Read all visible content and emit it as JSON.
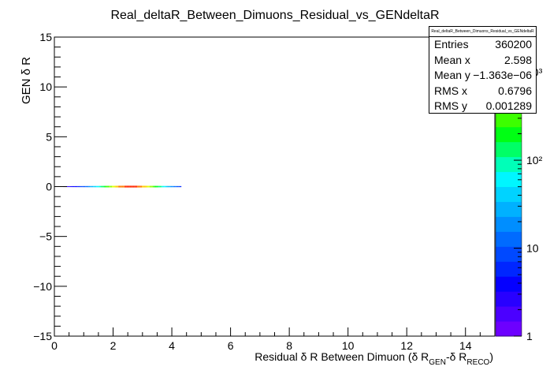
{
  "chart_data": {
    "type": "heatmap",
    "title": "Real_deltaR_Between_Dimuons_Residual_vs_GENdeltaR",
    "xlabel": "Residual δ R Between Dimuon (δ R_GEN-δ R_RECO)",
    "xlabel_parts": {
      "main": "Residual δ R Between Dimuon (δ R",
      "sub1": "GEN",
      "mid": "-δ R",
      "sub2": "RECO",
      "end": ")"
    },
    "ylabel": "GEN δ R",
    "xlim": [
      0,
      15
    ],
    "ylim": [
      -15,
      15
    ],
    "x_ticks": [
      "0",
      "2",
      "4",
      "6",
      "8",
      "10",
      "12",
      "14"
    ],
    "y_ticks": [
      "−15",
      "−10",
      "−5",
      "0",
      "5",
      "10",
      "15"
    ],
    "z_scale": "log",
    "z_ticks": [
      "1",
      "10",
      "10²",
      "10³"
    ],
    "palette": [
      "#6d00ff",
      "#4b00ff",
      "#2800ff",
      "#0500ff",
      "#0026ff",
      "#0049ff",
      "#006bff",
      "#008eff",
      "#00b1ff",
      "#00d3ff",
      "#00f6ff",
      "#00ffb8",
      "#00ff66",
      "#00ff14",
      "#3dff00",
      "#8fff00",
      "#e1ff00",
      "#ffcc00",
      "#ff7a00",
      "#ff2800"
    ],
    "band": {
      "x_range": [
        0.3,
        4.3
      ],
      "y_range": [
        -0.003,
        0.003
      ],
      "peak_x": 2.6,
      "description": "narrow horizontal band near y = 0"
    },
    "stats": {
      "title": "Real_deltaR_Between_Dimuons_Residual_vs_GENdeltaR",
      "rows": [
        {
          "label": "Entries",
          "value": "360200"
        },
        {
          "label": "Mean x",
          "value": "2.598"
        },
        {
          "label": "Mean y",
          "value": "−1.363e−06"
        },
        {
          "label": "RMS x",
          "value": "0.6796"
        },
        {
          "label": "RMS y",
          "value": "0.001289"
        }
      ]
    }
  }
}
